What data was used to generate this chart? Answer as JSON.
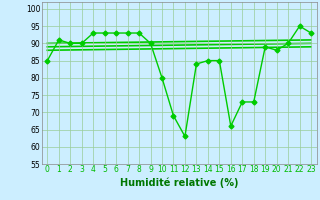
{
  "series": [
    {
      "x": [
        0,
        1,
        2,
        3,
        4,
        5,
        6,
        7,
        8,
        9,
        10,
        11,
        12,
        13,
        14,
        15,
        16,
        17,
        18,
        19,
        20,
        21,
        22,
        23
      ],
      "y": [
        85,
        91,
        90,
        90,
        93,
        93,
        93,
        93,
        93,
        90,
        80,
        69,
        63,
        84,
        85,
        85,
        66,
        73,
        73,
        89,
        88,
        90,
        95,
        93
      ],
      "color": "#00cc00",
      "linewidth": 1.0,
      "marker": "D",
      "markersize": 2.5
    },
    {
      "x": [
        0,
        23
      ],
      "y": [
        90,
        91
      ],
      "color": "#00cc00",
      "linewidth": 1.2
    },
    {
      "x": [
        0,
        23
      ],
      "y": [
        89,
        90
      ],
      "color": "#00cc00",
      "linewidth": 1.2
    },
    {
      "x": [
        0,
        23
      ],
      "y": [
        88,
        89
      ],
      "color": "#00cc00",
      "linewidth": 1.2
    }
  ],
  "xlabel": "Humidité relative (%)",
  "xlabel_fontsize": 7,
  "xlabel_color": "#007700",
  "xlim": [
    -0.5,
    23.5
  ],
  "ylim": [
    55,
    102
  ],
  "yticks": [
    55,
    60,
    65,
    70,
    75,
    80,
    85,
    90,
    95,
    100
  ],
  "xticks": [
    0,
    1,
    2,
    3,
    4,
    5,
    6,
    7,
    8,
    9,
    10,
    11,
    12,
    13,
    14,
    15,
    16,
    17,
    18,
    19,
    20,
    21,
    22,
    23
  ],
  "tick_fontsize": 5.5,
  "background_color": "#cceeff",
  "grid_color": "#99cc99",
  "line_color": "#00bb00",
  "border_color": "#888888"
}
